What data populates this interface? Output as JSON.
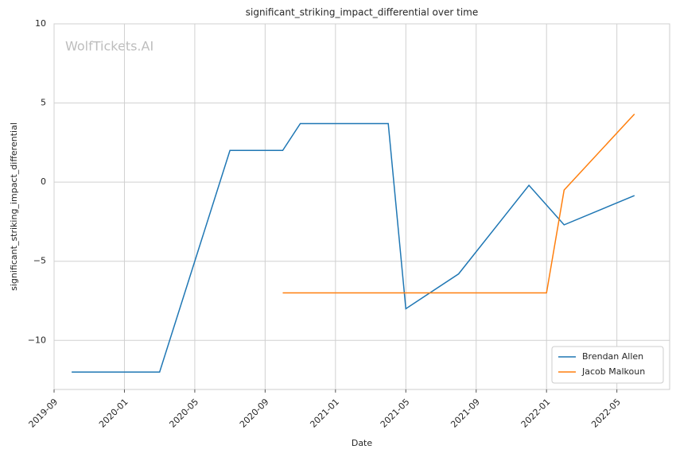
{
  "chart_data": {
    "type": "line",
    "title": "significant_striking_impact_differential over time",
    "watermark": "WolfTickets.AI",
    "x_label": "Date",
    "y_label": "significant_striking_impact_differential",
    "series": [
      {
        "name": "Brendan Allen",
        "color": "#1f77b4",
        "x": [
          "2019-10",
          "2020-03",
          "2020-07",
          "2020-10",
          "2020-11",
          "2021-04",
          "2021-05",
          "2021-08",
          "2021-12",
          "2022-02",
          "2022-06"
        ],
        "values": [
          -12,
          -12,
          2.0,
          2.0,
          3.7,
          3.7,
          -8.0,
          -5.8,
          -0.2,
          -2.7,
          -0.85
        ]
      },
      {
        "name": "Jacob Malkoun",
        "color": "#ff7f0e",
        "x": [
          "2020-10",
          "2022-01",
          "2022-02",
          "2022-06"
        ],
        "values": [
          -7,
          -7,
          -0.5,
          4.3
        ]
      }
    ],
    "xlim": [
      "2019-09",
      "2022-08"
    ],
    "xticks": [
      "2019-09",
      "2020-01",
      "2020-05",
      "2020-09",
      "2021-01",
      "2021-05",
      "2021-09",
      "2022-01",
      "2022-05"
    ],
    "ylim": [
      -13.1,
      10
    ],
    "yticks": [
      {
        "value": -10,
        "label": "−10"
      },
      {
        "value": -5,
        "label": "−5"
      },
      0,
      5,
      10
    ],
    "grid": true,
    "legend": "lower right"
  }
}
